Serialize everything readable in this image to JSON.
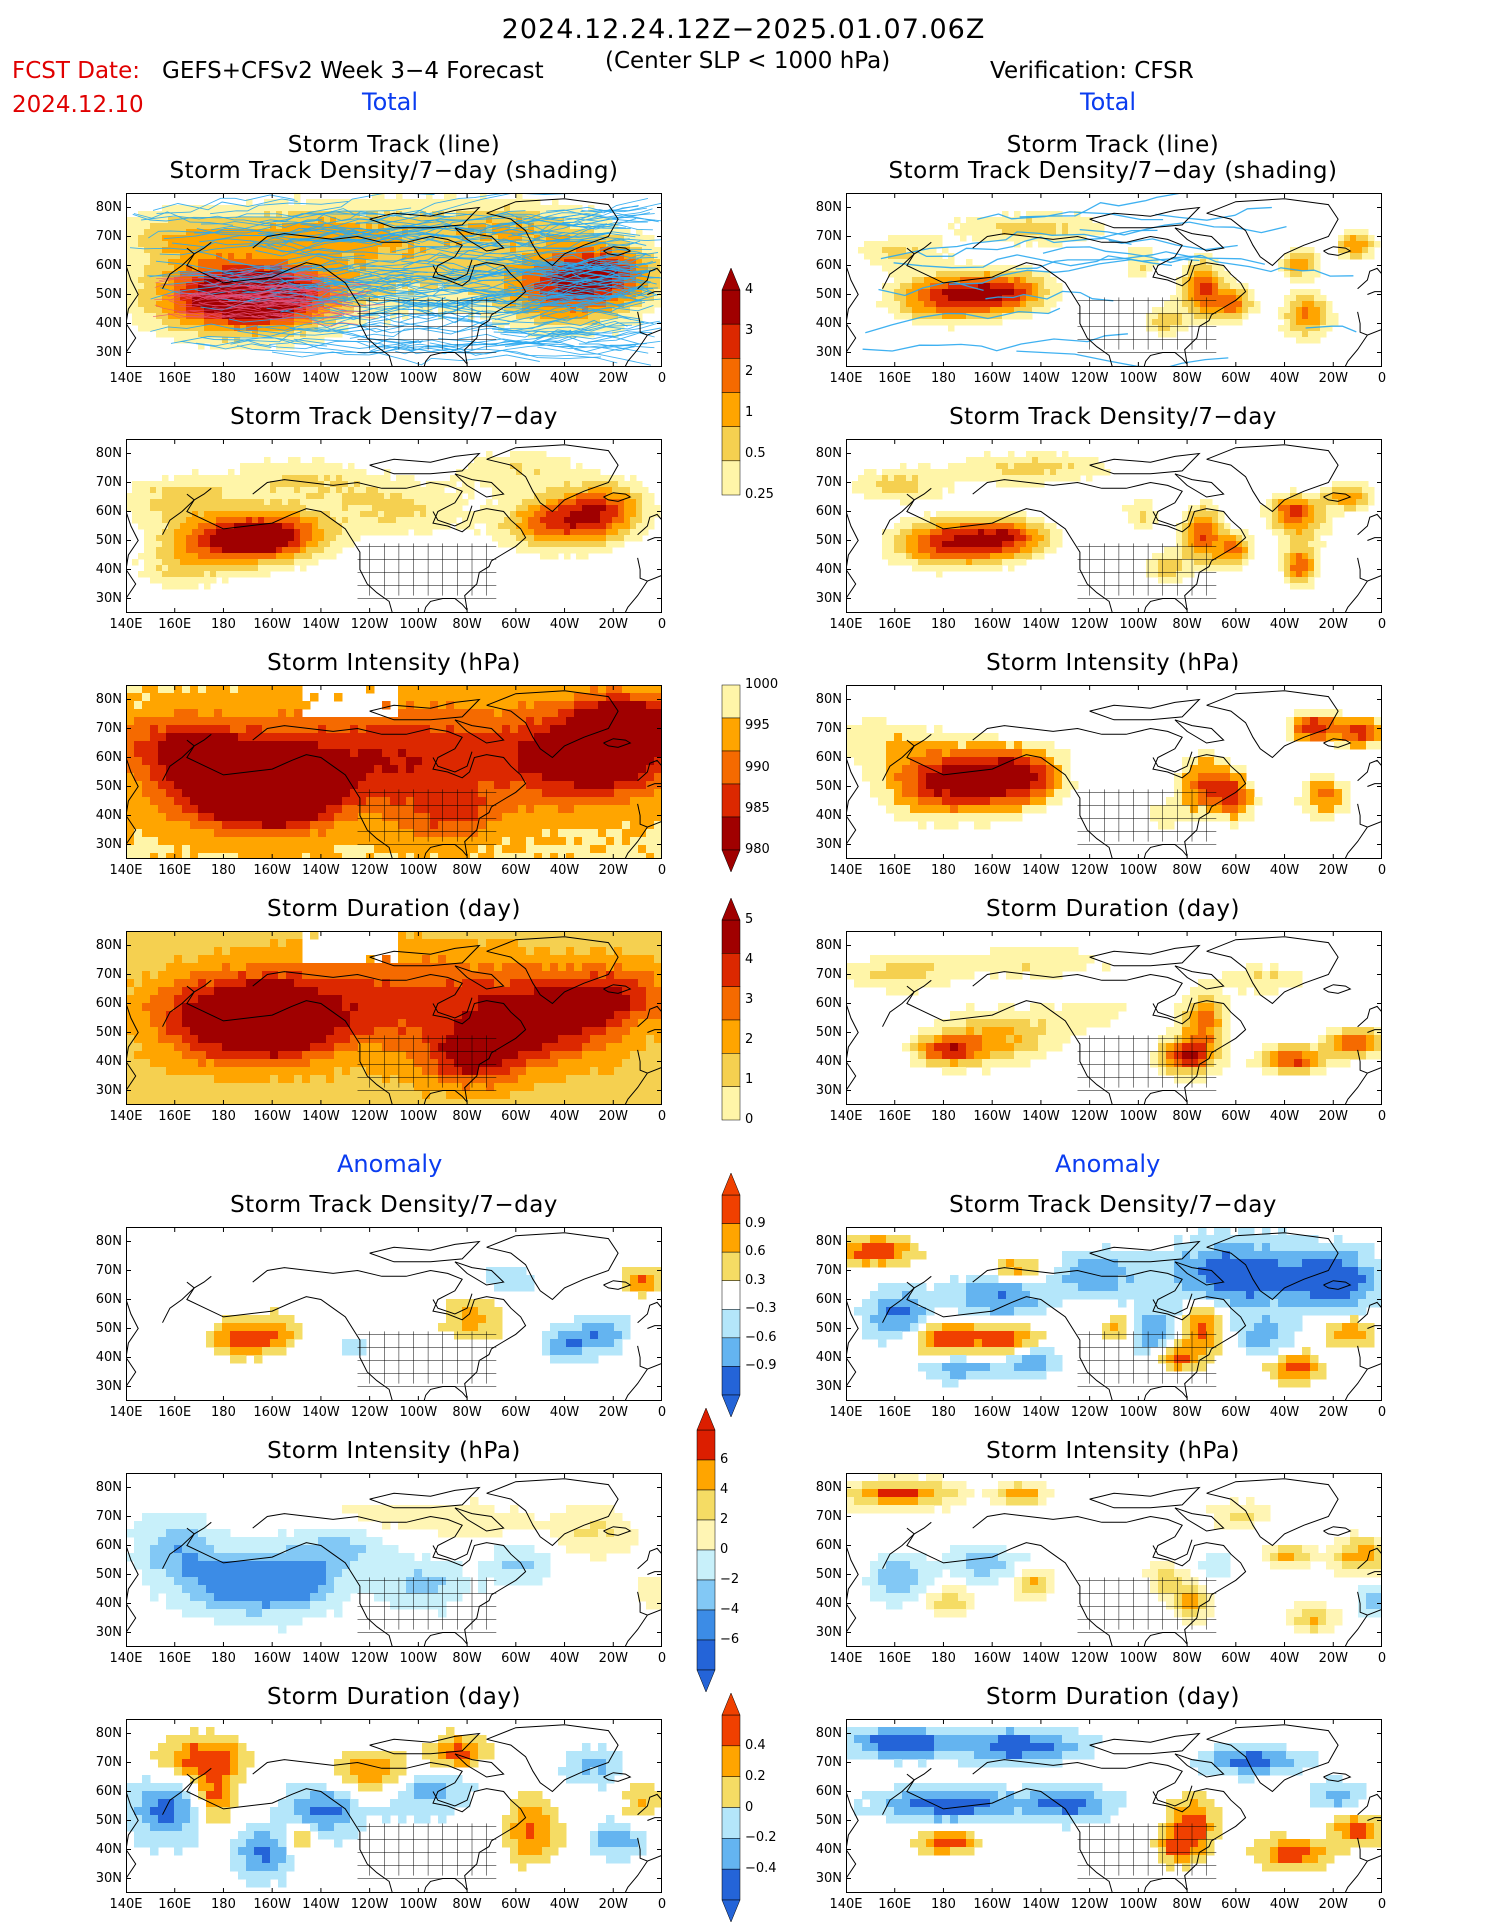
{
  "header": {
    "title": "2024.12.24.12Z−2025.01.07.06Z",
    "subtitle": "(Center SLP < 1000 hPa)",
    "fcst_label": "FCST Date:",
    "fcst_model": "GEFS+CFSv2 Week 3−4 Forecast",
    "fcst_date": "2024.12.10",
    "verification": "Verification: CFSR"
  },
  "sections": {
    "total": "Total",
    "anomaly": "Anomaly"
  },
  "panel_titles": {
    "track_line": "Storm Track (line)",
    "track_density_shading": "Storm Track Density/7−day (shading)",
    "track_density": "Storm Track Density/7−day",
    "intensity": "Storm Intensity (hPa)",
    "duration": "Storm Duration (day)"
  },
  "axes": {
    "lat_ticks": [
      "80N",
      "70N",
      "60N",
      "50N",
      "40N",
      "30N"
    ],
    "lon_ticks": [
      "140E",
      "160E",
      "180",
      "160W",
      "140W",
      "120W",
      "100W",
      "80W",
      "60W",
      "40W",
      "20W",
      "0"
    ]
  },
  "colorbars": {
    "density_total": {
      "labels": [
        "4",
        "3",
        "2",
        "1",
        "0.5",
        "0.25"
      ],
      "colors": [
        "#a00000",
        "#dc2800",
        "#f56a00",
        "#ffa500",
        "#f5d050",
        "#fff5a8"
      ]
    },
    "intensity_total": {
      "labels": [
        "1000",
        "995",
        "990",
        "985",
        "980"
      ],
      "colors": [
        "#fff5a8",
        "#ffa500",
        "#f56a00",
        "#dc2800",
        "#a00000"
      ]
    },
    "duration_total": {
      "labels": [
        "5",
        "4",
        "3",
        "2",
        "1",
        "0"
      ],
      "colors": [
        "#a00000",
        "#dc2800",
        "#f56a00",
        "#ffa500",
        "#f5d050",
        "#fff5a8"
      ]
    },
    "density_anom": {
      "labels": [
        "0.9",
        "0.6",
        "0.3",
        "−0.3",
        "−0.6",
        "−0.9"
      ],
      "colors": [
        "#f04000",
        "#ffa500",
        "#f5dc64",
        "#ffffff",
        "#b4e6fa",
        "#64b4f0",
        "#2464d8"
      ]
    },
    "intensity_anom": {
      "labels": [
        "6",
        "4",
        "2",
        "0",
        "−2",
        "−4",
        "−6"
      ],
      "colors": [
        "#dc1e00",
        "#ffa500",
        "#f5dc64",
        "#fff5b4",
        "#c8f0fa",
        "#82c8f5",
        "#3c8ce6",
        "#2464d8"
      ]
    },
    "duration_anom": {
      "labels": [
        "0.4",
        "0.2",
        "0",
        "−0.2",
        "−0.4"
      ],
      "colors": [
        "#f04000",
        "#ffa500",
        "#f5dc64",
        "#b4e6fa",
        "#64b4f0",
        "#2464d8"
      ]
    }
  }
}
